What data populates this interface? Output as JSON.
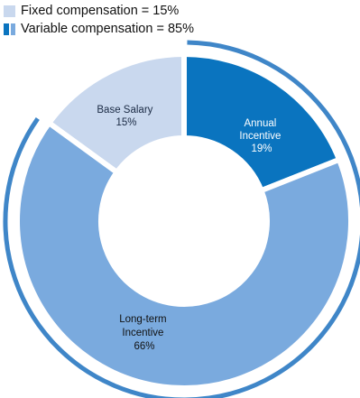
{
  "legend": {
    "fixed": "Fixed compensation = 15%",
    "variable": "Variable compensation = 85%"
  },
  "colors": {
    "base": "#c9d8ee",
    "annual": "#0a74bf",
    "longterm": "#7aaade",
    "outline": "#3f86c8"
  },
  "chart_data": {
    "type": "pie",
    "categories": [
      "Base Salary",
      "Annual Incentive",
      "Long-term Incentive"
    ],
    "values": [
      15,
      19,
      66
    ],
    "labels": [
      [
        "Base Salary",
        "15%"
      ],
      [
        "Annual",
        "Incentive",
        "19%"
      ],
      [
        "Long-term",
        "Incentive",
        "66%"
      ]
    ],
    "groups": [
      {
        "name": "Fixed compensation",
        "value": 15
      },
      {
        "name": "Variable compensation",
        "value": 85
      }
    ]
  }
}
